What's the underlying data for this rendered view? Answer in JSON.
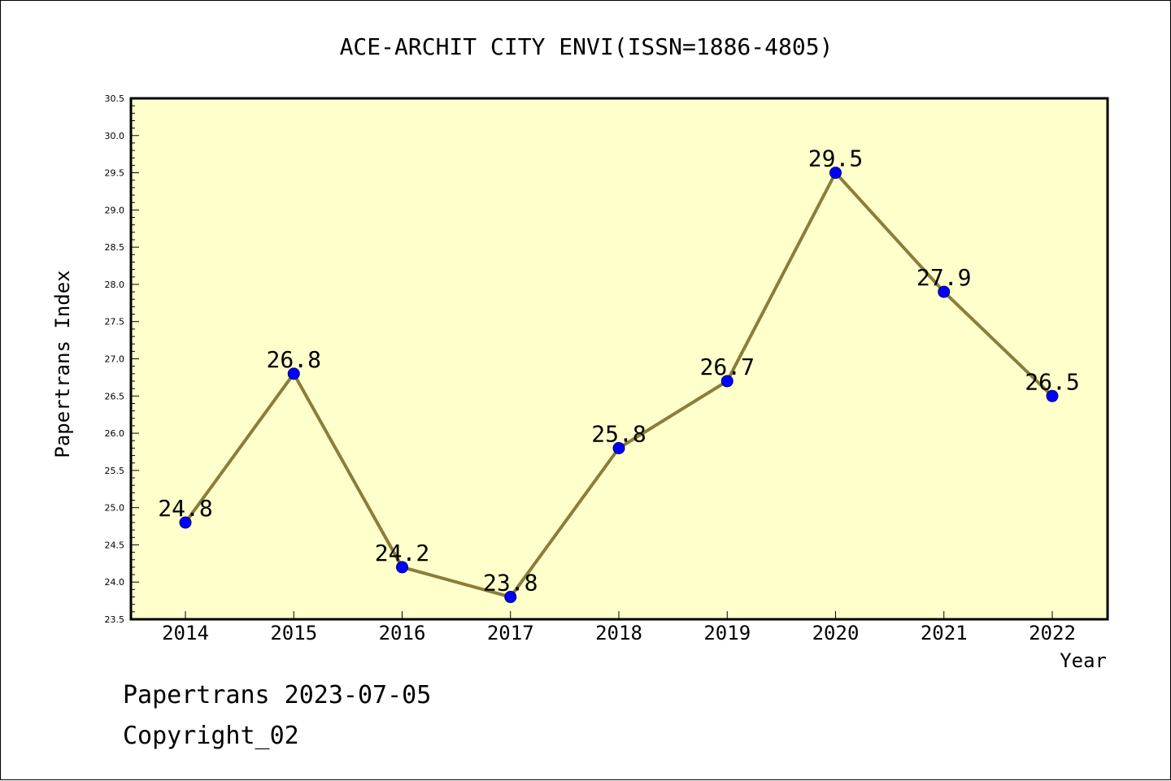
{
  "chart_data": {
    "type": "line",
    "title": "ACE-ARCHIT CITY ENVI(ISSN=1886-4805)",
    "xlabel": "Year",
    "ylabel": "Papertrans Index",
    "categories": [
      "2014",
      "2015",
      "2016",
      "2017",
      "2018",
      "2019",
      "2020",
      "2021",
      "2022"
    ],
    "series": [
      {
        "values": [
          24.8,
          26.8,
          24.2,
          23.8,
          25.8,
          26.7,
          29.5,
          27.9,
          26.5
        ],
        "labels": [
          "24.8",
          "26.8",
          "24.2",
          "23.8",
          "25.8",
          "26.7",
          "29.5",
          "27.9",
          "26.5"
        ]
      }
    ],
    "ylim": [
      23.5,
      30.5
    ],
    "yticks": [
      "23.5",
      "24.0",
      "24.5",
      "25.0",
      "25.5",
      "26.0",
      "26.5",
      "27.0",
      "27.5",
      "28.0",
      "28.5",
      "29.0",
      "29.5",
      "30.0",
      "30.5"
    ],
    "grid": false,
    "colors": {
      "plot_background": "#ffffcc",
      "line": "#8b7d3a",
      "marker": "#0000ff"
    }
  },
  "footer": {
    "line1": "Papertrans 2023-07-05",
    "line2": "Copyright_02"
  }
}
